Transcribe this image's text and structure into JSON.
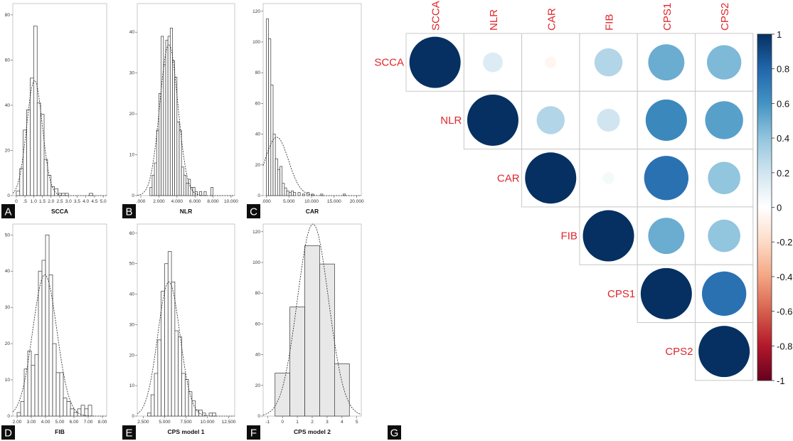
{
  "chart_data": [
    {
      "type": "bar",
      "subtype": "histogram",
      "panel": "A",
      "xlabel": "SCCA",
      "xticks": [
        "0",
        ".5",
        "1.0",
        "1.5",
        "2.0",
        "2.5",
        "3.0",
        "3.5",
        "4.0",
        "4.5",
        "5.0"
      ],
      "xlim": [
        -0.2,
        5.2
      ],
      "yticks": [
        "0",
        "20",
        "40",
        "60",
        "80"
      ],
      "ylim": [
        0,
        85
      ],
      "bin_width": 0.2,
      "bins": [
        {
          "x": 0.0,
          "count": 2
        },
        {
          "x": 0.2,
          "count": 12
        },
        {
          "x": 0.4,
          "count": 29
        },
        {
          "x": 0.6,
          "count": 38
        },
        {
          "x": 0.8,
          "count": 52
        },
        {
          "x": 1.0,
          "count": 75
        },
        {
          "x": 1.2,
          "count": 41
        },
        {
          "x": 1.4,
          "count": 36
        },
        {
          "x": 1.6,
          "count": 16
        },
        {
          "x": 1.8,
          "count": 9
        },
        {
          "x": 2.0,
          "count": 4
        },
        {
          "x": 2.2,
          "count": 3
        },
        {
          "x": 2.4,
          "count": 1
        },
        {
          "x": 2.6,
          "count": 1
        },
        {
          "x": 2.8,
          "count": 1
        },
        {
          "x": 4.2,
          "count": 1
        }
      ],
      "normal_curve": {
        "mean": 1.05,
        "sd": 0.45,
        "peak": 51
      }
    },
    {
      "type": "bar",
      "subtype": "histogram",
      "panel": "B",
      "xlabel": "NLR",
      "xticks": [
        ".000",
        "2.000",
        "4.000",
        "6.000",
        "8.000",
        "10.000"
      ],
      "xlim": [
        -0.4,
        10.4
      ],
      "yticks": [
        "0",
        "10",
        "20",
        "30",
        "40"
      ],
      "ylim": [
        0,
        47
      ],
      "bin_width": 0.25,
      "bins": [
        {
          "x": 1.0,
          "count": 2
        },
        {
          "x": 1.25,
          "count": 5
        },
        {
          "x": 1.5,
          "count": 8
        },
        {
          "x": 1.75,
          "count": 16
        },
        {
          "x": 2.0,
          "count": 25
        },
        {
          "x": 2.25,
          "count": 39
        },
        {
          "x": 2.5,
          "count": 32
        },
        {
          "x": 2.75,
          "count": 38
        },
        {
          "x": 3.0,
          "count": 39
        },
        {
          "x": 3.25,
          "count": 41
        },
        {
          "x": 3.5,
          "count": 33
        },
        {
          "x": 3.75,
          "count": 29
        },
        {
          "x": 4.0,
          "count": 18
        },
        {
          "x": 4.25,
          "count": 16
        },
        {
          "x": 4.5,
          "count": 7
        },
        {
          "x": 4.75,
          "count": 5
        },
        {
          "x": 5.0,
          "count": 3
        },
        {
          "x": 5.25,
          "count": 4
        },
        {
          "x": 5.5,
          "count": 2
        },
        {
          "x": 5.75,
          "count": 2
        },
        {
          "x": 6.0,
          "count": 1
        },
        {
          "x": 6.5,
          "count": 1
        },
        {
          "x": 7.0,
          "count": 1
        },
        {
          "x": 7.75,
          "count": 2
        }
      ],
      "normal_curve": {
        "mean": 3.1,
        "sd": 1.0,
        "peak": 37
      }
    },
    {
      "type": "bar",
      "subtype": "histogram",
      "panel": "C",
      "xlabel": "CAR",
      "xticks": [
        ".000",
        "5.000",
        "10.000",
        "15.000",
        "20.000"
      ],
      "xlim": [
        -0.7,
        21
      ],
      "yticks": [
        "0",
        "20",
        "40",
        "60",
        "80",
        "100",
        "120"
      ],
      "ylim": [
        0,
        125
      ],
      "bin_width": 0.5,
      "bins": [
        {
          "x": 0.0,
          "count": 115
        },
        {
          "x": 0.5,
          "count": 102
        },
        {
          "x": 1.0,
          "count": 72
        },
        {
          "x": 1.5,
          "count": 40
        },
        {
          "x": 2.0,
          "count": 24
        },
        {
          "x": 2.5,
          "count": 17
        },
        {
          "x": 3.0,
          "count": 19
        },
        {
          "x": 3.5,
          "count": 8
        },
        {
          "x": 4.0,
          "count": 5
        },
        {
          "x": 4.5,
          "count": 3
        },
        {
          "x": 5.0,
          "count": 2
        },
        {
          "x": 5.5,
          "count": 3
        },
        {
          "x": 6.0,
          "count": 2
        },
        {
          "x": 7.0,
          "count": 2
        },
        {
          "x": 8.0,
          "count": 1
        },
        {
          "x": 9.0,
          "count": 2
        },
        {
          "x": 10.0,
          "count": 1
        },
        {
          "x": 12.0,
          "count": 1
        },
        {
          "x": 17.0,
          "count": 1
        }
      ],
      "normal_curve": {
        "mean": 2.3,
        "sd": 2.6,
        "peak": 38
      }
    },
    {
      "type": "bar",
      "subtype": "histogram",
      "panel": "D",
      "xlabel": "FIB",
      "xticks": [
        "2.00",
        "3.00",
        "4.00",
        "5.00",
        "6.00",
        "7.00",
        "8.00"
      ],
      "xlim": [
        1.7,
        8.3
      ],
      "yticks": [
        "0",
        "10",
        "20",
        "30",
        "40",
        "50"
      ],
      "ylim": [
        0,
        53
      ],
      "bin_width": 0.25,
      "bins": [
        {
          "x": 2.0,
          "count": 1
        },
        {
          "x": 2.25,
          "count": 4
        },
        {
          "x": 2.5,
          "count": 13
        },
        {
          "x": 2.75,
          "count": 18
        },
        {
          "x": 3.0,
          "count": 14
        },
        {
          "x": 3.25,
          "count": 17
        },
        {
          "x": 3.5,
          "count": 40
        },
        {
          "x": 3.75,
          "count": 43
        },
        {
          "x": 4.0,
          "count": 50
        },
        {
          "x": 4.25,
          "count": 39
        },
        {
          "x": 4.5,
          "count": 20
        },
        {
          "x": 4.75,
          "count": 12
        },
        {
          "x": 5.0,
          "count": 12
        },
        {
          "x": 5.25,
          "count": 5
        },
        {
          "x": 5.5,
          "count": 4
        },
        {
          "x": 5.75,
          "count": 2
        },
        {
          "x": 6.0,
          "count": 1
        },
        {
          "x": 6.25,
          "count": 2
        },
        {
          "x": 6.5,
          "count": 3
        },
        {
          "x": 6.75,
          "count": 2
        },
        {
          "x": 7.0,
          "count": 3
        }
      ],
      "normal_curve": {
        "mean": 3.95,
        "sd": 0.85,
        "peak": 39
      }
    },
    {
      "type": "bar",
      "subtype": "histogram",
      "panel": "E",
      "xlabel": "CPS model 1",
      "xticks": [
        "2.500",
        "5.000",
        "7.500",
        "10.000",
        "12.500"
      ],
      "xlim": [
        1.8,
        13.2
      ],
      "yticks": [
        "0",
        "10",
        "20",
        "30",
        "40",
        "50",
        "60"
      ],
      "ylim": [
        0,
        63
      ],
      "bin_width": 0.4,
      "bins": [
        {
          "x": 3.0,
          "count": 1
        },
        {
          "x": 3.4,
          "count": 7
        },
        {
          "x": 3.8,
          "count": 14
        },
        {
          "x": 4.2,
          "count": 25
        },
        {
          "x": 4.6,
          "count": 41
        },
        {
          "x": 5.0,
          "count": 50
        },
        {
          "x": 5.4,
          "count": 54
        },
        {
          "x": 5.8,
          "count": 44
        },
        {
          "x": 6.2,
          "count": 28
        },
        {
          "x": 6.6,
          "count": 26
        },
        {
          "x": 7.0,
          "count": 14
        },
        {
          "x": 7.4,
          "count": 12
        },
        {
          "x": 7.8,
          "count": 8
        },
        {
          "x": 8.2,
          "count": 5
        },
        {
          "x": 8.6,
          "count": 2
        },
        {
          "x": 9.0,
          "count": 2
        },
        {
          "x": 9.4,
          "count": 1
        },
        {
          "x": 10.2,
          "count": 1
        },
        {
          "x": 10.6,
          "count": 1
        }
      ],
      "normal_curve": {
        "mean": 5.5,
        "sd": 1.3,
        "peak": 44
      }
    },
    {
      "type": "bar",
      "subtype": "histogram",
      "panel": "F",
      "xlabel": "CPS model 2",
      "xticks": [
        "-1",
        "0",
        "1",
        "2",
        "3",
        "4",
        "5"
      ],
      "xlim": [
        -1.3,
        5.3
      ],
      "yticks": [
        "0",
        "20",
        "40",
        "60",
        "80",
        "100",
        "120"
      ],
      "ylim": [
        0,
        125
      ],
      "bin_width": 1,
      "bins": [
        {
          "x": -0.5,
          "count": 28
        },
        {
          "x": 0.5,
          "count": 71
        },
        {
          "x": 1.5,
          "count": 111
        },
        {
          "x": 2.5,
          "count": 99
        },
        {
          "x": 3.5,
          "count": 34
        }
      ],
      "normal_curve": {
        "mean": 2.05,
        "sd": 1.05,
        "peak": 125
      }
    },
    {
      "type": "heatmap",
      "subtype": "correlation-circle-upper",
      "panel": "G",
      "variables": [
        "SCCA",
        "NLR",
        "CAR",
        "FIB",
        "CPS1",
        "CPS2"
      ],
      "column_labels": [
        "SCCA",
        "NLR",
        "CAR",
        "FIB",
        "CPS1",
        "CPS2"
      ],
      "matrix": [
        [
          1.0,
          0.15,
          -0.05,
          0.3,
          0.5,
          0.45
        ],
        [
          null,
          1.0,
          0.3,
          0.2,
          0.65,
          0.55
        ],
        [
          null,
          null,
          1.0,
          0.05,
          0.75,
          0.4
        ],
        [
          null,
          null,
          null,
          1.0,
          0.5,
          0.4
        ],
        [
          null,
          null,
          null,
          null,
          1.0,
          0.75
        ],
        [
          null,
          null,
          null,
          null,
          null,
          1.0
        ]
      ],
      "colorbar": {
        "ticks": [
          "1",
          "0.8",
          "0.6",
          "0.4",
          "0.2",
          "0",
          "-0.2",
          "-0.4",
          "-0.6",
          "-0.8",
          "-1"
        ],
        "range": [
          -1,
          1
        ],
        "colors": [
          "#67001f",
          "#b2182b",
          "#d6604d",
          "#f4a582",
          "#fddbc7",
          "#ffffff",
          "#d1e5f0",
          "#92c5de",
          "#4393c3",
          "#2166ac",
          "#053061"
        ]
      }
    }
  ],
  "panel_letters": [
    "A",
    "B",
    "C",
    "D",
    "E",
    "F",
    "G"
  ],
  "colors": {
    "bar_fill_open": "#ffffff",
    "bar_fill_gray": "#e8e8e8",
    "bar_stroke": "#333333",
    "label_red": "#e0262b",
    "panel_letter_bg": "#0d0d0d"
  }
}
